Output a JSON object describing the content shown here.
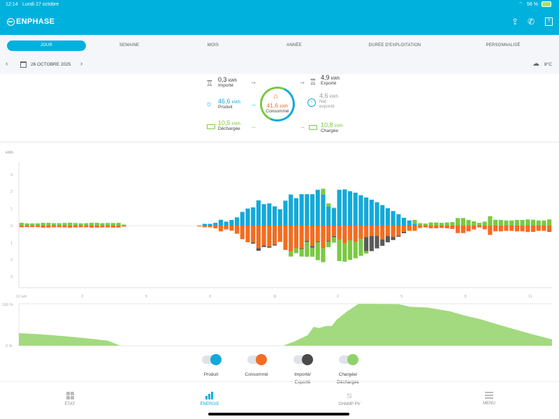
{
  "status": {
    "time": "12:14",
    "date": "Lundi 27 octobre",
    "battery": "56 %"
  },
  "header": {
    "brand": "ENPHASE"
  },
  "tabs": [
    {
      "label": "JOUR"
    },
    {
      "label": "SEMAINE"
    },
    {
      "label": "MOIS"
    },
    {
      "label": "ANNÉE"
    },
    {
      "label": "DURÉE D'EXPLOITATION"
    },
    {
      "label": "PERSONNALISÉ"
    }
  ],
  "daterow": {
    "date": "26 OCTOBRE 2025",
    "weather": "8°C"
  },
  "summary": {
    "imported": {
      "value": "0,3",
      "unit": "kWh",
      "label": "Importé"
    },
    "exported": {
      "value": "4,9",
      "unit": "kWh",
      "label": "Exporté"
    },
    "produced": {
      "value": "46,6",
      "unit": "kWh",
      "label": "Produit"
    },
    "net": {
      "value": "4,6",
      "unit": "kWh",
      "label1": "Net",
      "label2": "exporté"
    },
    "consumed": {
      "value": "41,6",
      "unit": "kWh",
      "label": "Consommé"
    },
    "discharged": {
      "value": "10,5",
      "unit": "kWh",
      "label": "Déchargée"
    },
    "charged": {
      "value": "10,8",
      "unit": "kWh",
      "label": "Chargée"
    }
  },
  "colors": {
    "produced": "#12a9d9",
    "consumed": "#f26d21",
    "grid": "#5a5a5a",
    "battery": "#7ac943",
    "soc": "#a3d97f",
    "accent": "#01b1dd"
  },
  "chart_data": [
    {
      "type": "bar",
      "title": "",
      "ylabel": "kWh",
      "ylim": [
        -3,
        3
      ],
      "yticks": [
        "3",
        "2",
        "1",
        "0",
        "1",
        "2",
        "3"
      ],
      "xticks": [
        "12 am",
        "2",
        "5",
        "8",
        "11",
        "2",
        "5",
        "8",
        "11"
      ],
      "xlabel": "",
      "interval_count": 99,
      "series": {
        "produced": [
          0,
          0,
          0,
          0,
          0,
          0,
          0,
          0,
          0,
          0,
          0,
          0,
          0,
          0,
          0,
          0,
          0,
          0,
          0,
          0,
          0,
          0,
          0,
          0,
          0,
          0,
          0,
          0,
          0,
          0,
          0,
          0,
          0,
          0,
          0.1,
          0.1,
          0.16,
          0.34,
          0.23,
          0.33,
          0.48,
          0.8,
          1.0,
          1.07,
          1.48,
          1.26,
          1.3,
          1.13,
          0.96,
          1.46,
          1.82,
          1.61,
          1.84,
          1.84,
          1.84,
          2.1,
          1.82,
          1.12,
          1.01,
          2.1,
          2.12,
          2.02,
          1.93,
          1.78,
          1.65,
          1.52,
          1.37,
          1.2,
          1.02,
          0.85,
          0.67,
          0.46,
          0.3,
          0.11,
          0,
          0,
          0,
          0,
          0,
          0,
          0,
          0,
          0,
          0,
          0,
          0,
          0,
          0,
          0,
          0,
          0,
          0,
          0,
          0,
          0,
          0,
          0,
          0,
          0
        ],
        "discharged": [
          0.16,
          0.13,
          0.13,
          0.13,
          0.16,
          0.16,
          0.14,
          0.14,
          0.15,
          0.17,
          0.15,
          0.13,
          0.14,
          0.16,
          0.16,
          0.14,
          0.15,
          0.15,
          0.16,
          0.06,
          0,
          0,
          0,
          0,
          0,
          0,
          0,
          0,
          0,
          0,
          0,
          0,
          0,
          0,
          0,
          0,
          0,
          0,
          0,
          0,
          0,
          0,
          0,
          0,
          0,
          0,
          0,
          0,
          0,
          0,
          0,
          0,
          0,
          0,
          0,
          0,
          0.34,
          0.18,
          0.04,
          0,
          0,
          0,
          0,
          0,
          0,
          0,
          0,
          0,
          0,
          0,
          0,
          0,
          0,
          0.22,
          0.14,
          0.12,
          0.18,
          0.18,
          0.16,
          0.18,
          0.2,
          0.44,
          0.44,
          0.33,
          0.25,
          0.16,
          0.23,
          0.55,
          0.34,
          0.33,
          0.3,
          0.3,
          0.33,
          0.33,
          0.36,
          0.34,
          0.3,
          0.3,
          0.36
        ],
        "consumed": [
          0.1,
          0.09,
          0.09,
          0.09,
          0.12,
          0.12,
          0.1,
          0.1,
          0.11,
          0.13,
          0.11,
          0.1,
          0.1,
          0.12,
          0.12,
          0.11,
          0.11,
          0.12,
          0.12,
          0.06,
          0,
          0,
          0,
          0,
          0,
          0,
          0,
          0,
          0,
          0,
          0,
          0,
          0,
          0.05,
          0.1,
          0.1,
          0.16,
          0.34,
          0.23,
          0.3,
          0.48,
          0.8,
          0.98,
          0.98,
          1.33,
          1.16,
          1.23,
          1.1,
          0.96,
          1.43,
          1.53,
          1.33,
          1.33,
          0.89,
          1.2,
          0.93,
          1.33,
          0.89,
          0.61,
          0.82,
          1.05,
          0.86,
          0.96,
          0.78,
          0.68,
          0.61,
          0.61,
          0.82,
          0.61,
          0.66,
          0.59,
          0.37,
          0.31,
          0.31,
          0.14,
          0.11,
          0.16,
          0.16,
          0.14,
          0.16,
          0.2,
          0.44,
          0.44,
          0.34,
          0.23,
          0.11,
          0.22,
          0.55,
          0.34,
          0.34,
          0.31,
          0.31,
          0.34,
          0.34,
          0.38,
          0.37,
          0.31,
          0.31,
          0.35
        ],
        "exported": [
          0,
          0,
          0,
          0,
          0,
          0,
          0,
          0,
          0,
          0,
          0,
          0,
          0,
          0,
          0,
          0,
          0,
          0,
          0,
          0,
          0,
          0,
          0,
          0,
          0,
          0,
          0,
          0,
          0,
          0,
          0,
          0,
          0,
          0,
          0,
          0,
          0,
          0,
          0,
          0,
          0,
          0,
          0,
          0.08,
          0.15,
          0.1,
          0.07,
          0.07,
          0,
          0,
          0,
          0,
          0.05,
          0.08,
          0.1,
          0.05,
          0,
          0.05,
          0.07,
          0,
          0,
          0,
          0,
          0,
          0.82,
          0.89,
          0.73,
          0.37,
          0.37,
          0.19,
          0.07,
          0.08,
          0,
          0,
          0,
          0,
          0,
          0,
          0,
          0,
          0,
          0,
          0,
          0,
          0,
          0,
          0,
          0,
          0,
          0,
          0,
          0,
          0,
          0,
          0,
          0,
          0,
          0,
          0.02
        ],
        "charged": [
          0,
          0,
          0,
          0,
          0,
          0,
          0,
          0,
          0,
          0,
          0,
          0,
          0,
          0,
          0,
          0,
          0,
          0,
          0,
          0,
          0,
          0,
          0,
          0,
          0,
          0,
          0,
          0,
          0,
          0,
          0,
          0,
          0,
          0,
          0,
          0,
          0,
          0,
          0,
          0,
          0,
          0,
          0,
          0,
          0,
          0,
          0,
          0,
          0,
          0,
          0.29,
          0.29,
          0.44,
          0.86,
          0.53,
          1.05,
          0.82,
          0.33,
          0.32,
          1.26,
          1.07,
          1.15,
          0.96,
          1.0,
          0.14,
          0,
          0,
          0,
          0,
          0,
          0,
          0,
          0,
          0,
          0,
          0,
          0,
          0,
          0,
          0,
          0,
          0,
          0,
          0,
          0,
          0,
          0,
          0,
          0,
          0,
          0,
          0,
          0,
          0,
          0,
          0,
          0,
          0,
          0
        ]
      }
    },
    {
      "type": "area",
      "title": "",
      "ylabel": "",
      "ylim": [
        0,
        100
      ],
      "yticks": [
        "100 %",
        "0 %"
      ],
      "xlim": [
        0,
        24
      ],
      "points": [
        [
          0,
          30
        ],
        [
          1,
          27
        ],
        [
          2,
          23
        ],
        [
          3,
          18
        ],
        [
          4,
          12
        ],
        [
          4.56,
          0
        ],
        [
          11.9,
          0
        ],
        [
          12.4,
          10
        ],
        [
          13.0,
          25
        ],
        [
          13.27,
          45
        ],
        [
          13.5,
          42
        ],
        [
          13.84,
          47
        ],
        [
          14.09,
          47
        ],
        [
          14.31,
          62
        ],
        [
          14.78,
          82
        ],
        [
          15.29,
          100
        ],
        [
          17.1,
          99
        ],
        [
          17.6,
          93
        ],
        [
          18.4,
          91
        ],
        [
          19.4,
          82
        ],
        [
          20.0,
          73
        ],
        [
          20.8,
          63
        ],
        [
          21.6,
          50
        ],
        [
          22.4,
          38
        ],
        [
          23.2,
          26
        ],
        [
          24,
          15
        ]
      ]
    }
  ],
  "legend": [
    {
      "label": "Produit"
    },
    {
      "label": "Consommé"
    },
    {
      "label1": "Importé/",
      "label2": "Exporté"
    },
    {
      "label1": "Chargée/",
      "label2": "Déchargée"
    }
  ],
  "nav": [
    {
      "label": "ÉTAT"
    },
    {
      "label": "ÉNERGIE"
    },
    {
      "label": "CHAMP PV"
    },
    {
      "label": "MENU"
    }
  ]
}
